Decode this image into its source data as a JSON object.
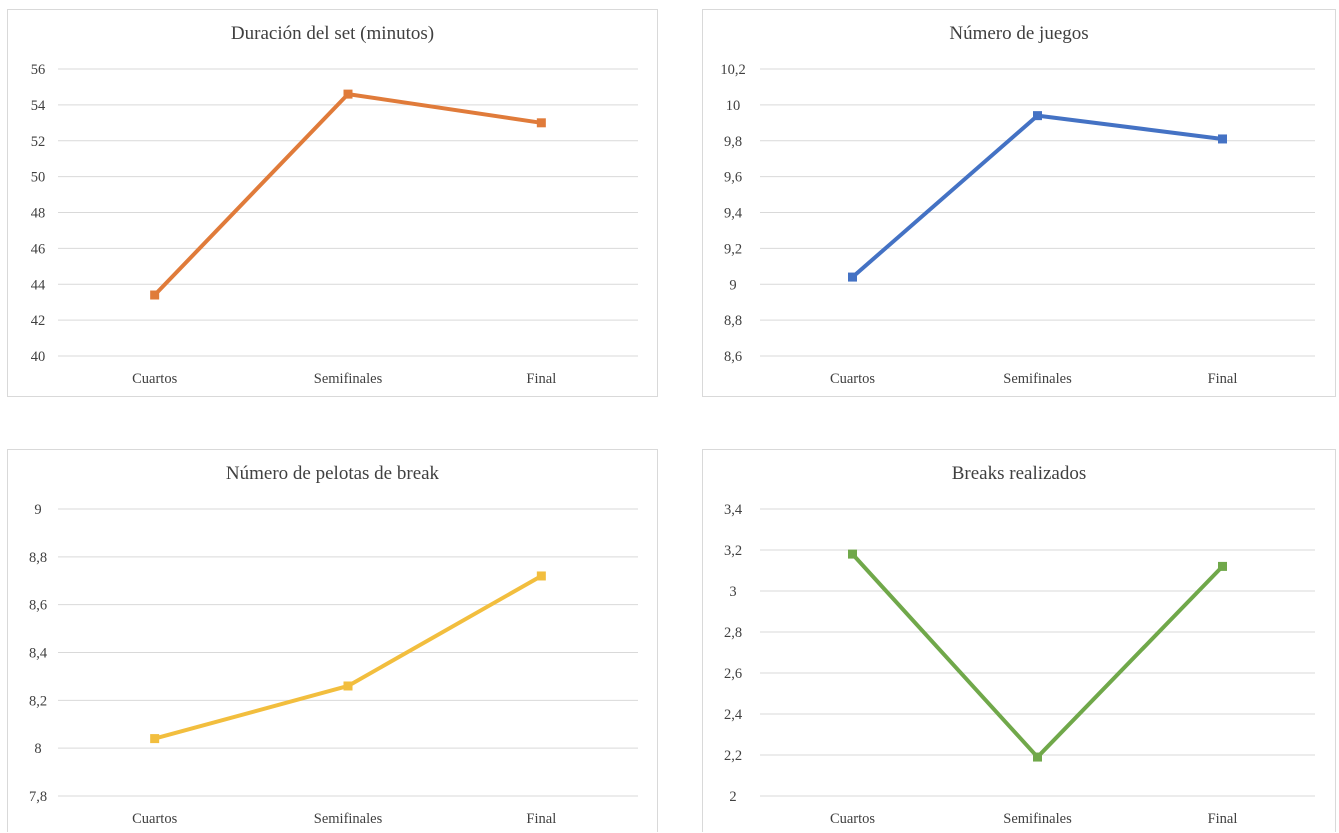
{
  "chart_data": [
    {
      "type": "line",
      "title": "Duración del set (minutos)",
      "categories": [
        "Cuartos",
        "Semifinales",
        "Final"
      ],
      "series": [
        {
          "values": [
            43.4,
            54.6,
            53.0
          ],
          "color": "#E07B3A"
        }
      ],
      "ylim": [
        40,
        56
      ],
      "yticks": [
        "40",
        "42",
        "44",
        "46",
        "48",
        "50",
        "52",
        "54",
        "56"
      ],
      "grid": true,
      "marker": "square"
    },
    {
      "type": "line",
      "title": "Número de juegos",
      "categories": [
        "Cuartos",
        "Semifinales",
        "Final"
      ],
      "series": [
        {
          "values": [
            9.04,
            9.94,
            9.81
          ],
          "color": "#4472C4"
        }
      ],
      "ylim": [
        8.6,
        10.2
      ],
      "yticks": [
        "8,6",
        "8,8",
        "9",
        "9,2",
        "9,4",
        "9,6",
        "9,8",
        "10",
        "10,2"
      ],
      "grid": true,
      "marker": "square"
    },
    {
      "type": "line",
      "title": "Número de pelotas de break",
      "categories": [
        "Cuartos",
        "Semifinales",
        "Final"
      ],
      "series": [
        {
          "values": [
            8.04,
            8.26,
            8.72
          ],
          "color": "#F2BE3E"
        }
      ],
      "ylim": [
        7.8,
        9.0
      ],
      "yticks": [
        "7,8",
        "8",
        "8,2",
        "8,4",
        "8,6",
        "8,8",
        "9"
      ],
      "grid": true,
      "marker": "square"
    },
    {
      "type": "line",
      "title": "Breaks realizados",
      "categories": [
        "Cuartos",
        "Semifinales",
        "Final"
      ],
      "series": [
        {
          "values": [
            3.18,
            2.19,
            3.12
          ],
          "color": "#70A84A"
        }
      ],
      "ylim": [
        2.0,
        3.4
      ],
      "yticks": [
        "2",
        "2,2",
        "2,4",
        "2,6",
        "2,8",
        "3",
        "3,2",
        "3,4"
      ],
      "grid": true,
      "marker": "square"
    }
  ]
}
